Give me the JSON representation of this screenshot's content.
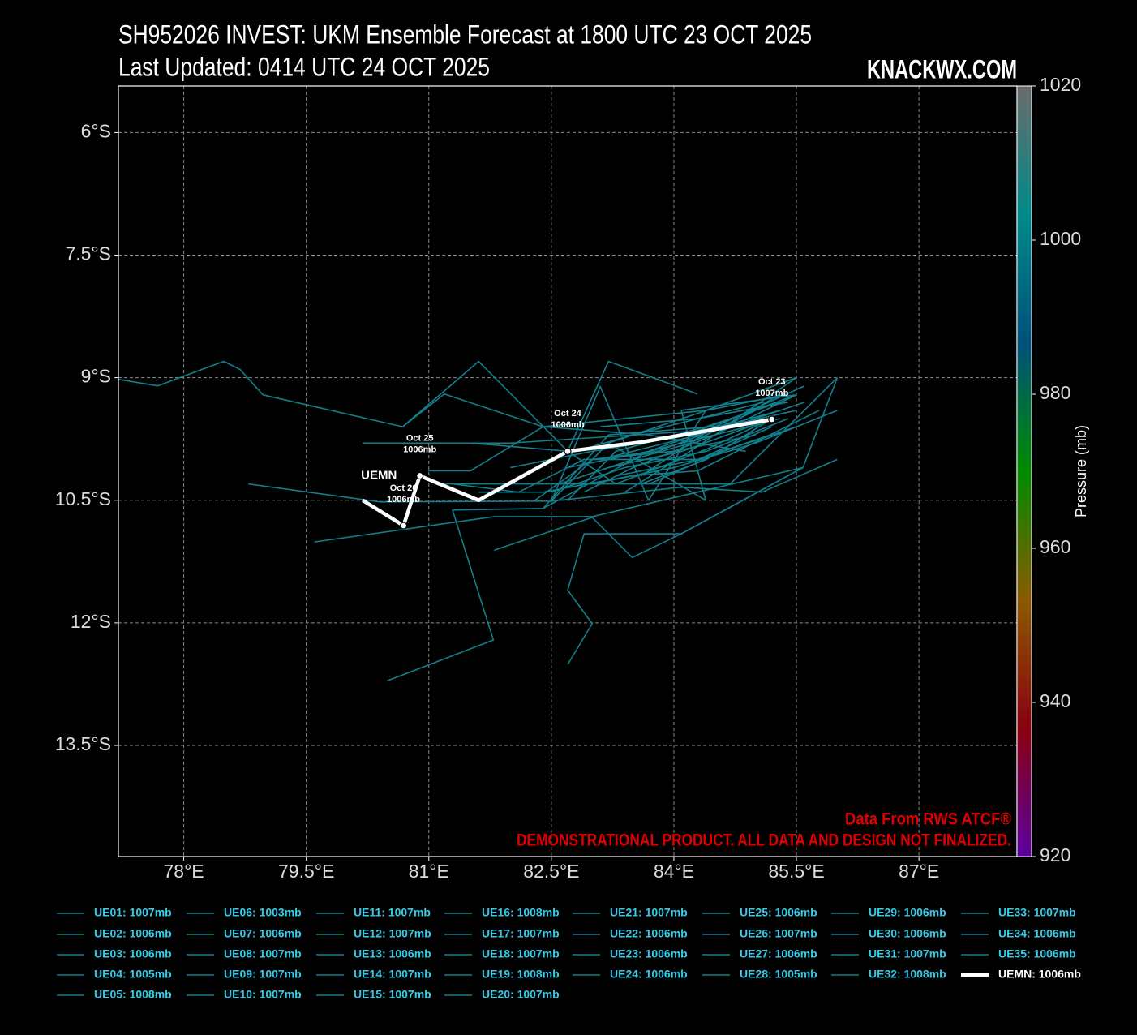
{
  "chart_data": {
    "type": "line",
    "title": "SH952026 INVEST: UKM Ensemble Forecast at 1800 UTC 23 OCT 2025",
    "subtitle": "Last Updated: 0414 UTC 24 OCT 2025",
    "brand": "KNACKWX.COM",
    "source": "Data From RWS ATCF®",
    "disclaimer": "DEMONSTRATIONAL PRODUCT. ALL DATA AND DESIGN NOT FINALIZED.",
    "xlim": [
      77.2,
      88.2
    ],
    "ylim": [
      -14.86,
      -5.43
    ],
    "xticks": [
      {
        "value": 78,
        "label": "78°E"
      },
      {
        "value": 79.5,
        "label": "79.5°E"
      },
      {
        "value": 81,
        "label": "81°E"
      },
      {
        "value": 82.5,
        "label": "82.5°E"
      },
      {
        "value": 84,
        "label": "84°E"
      },
      {
        "value": 85.5,
        "label": "85.5°E"
      },
      {
        "value": 87,
        "label": "87°E"
      }
    ],
    "yticks": [
      {
        "value": -6,
        "label": "6°S"
      },
      {
        "value": -7.5,
        "label": "7.5°S"
      },
      {
        "value": -9,
        "label": "9°S"
      },
      {
        "value": -10.5,
        "label": "10.5°S"
      },
      {
        "value": -12,
        "label": "12°S"
      },
      {
        "value": -13.5,
        "label": "13.5°S"
      }
    ],
    "grid": true,
    "colorbar": {
      "label": "Pressure (mb)",
      "lim": [
        920,
        1020
      ],
      "ticks": [
        920,
        940,
        960,
        980,
        1000,
        1020
      ],
      "colors": [
        "#5a00a0",
        "#8a0010",
        "#8a5a00",
        "#008a00",
        "#00507a",
        "#008a8a",
        "#6a6a6a"
      ]
    },
    "series": [
      {
        "name": "UE01: 1007mb",
        "color": "#127f8c",
        "x": [
          85.5,
          84.39,
          82.4,
          81.19,
          80.68,
          78.97,
          78.69,
          78.49,
          77.68,
          77.2
        ],
        "values": [
          -9.0,
          -9.4,
          -9.6,
          -9.2,
          -9.6,
          -9.21,
          -8.9,
          -8.8,
          -9.1,
          -9.02
        ]
      },
      {
        "name": "UE02: 1006mb",
        "color": "#127f8c",
        "x": [
          85.5,
          84.29,
          82.0,
          80.19
        ],
        "values": [
          -9.21,
          -9.65,
          -9.8,
          -9.8
        ]
      },
      {
        "name": "UE03: 1006mb",
        "color": "#127f8c",
        "x": [
          84.29,
          83.2,
          82.7,
          81.61,
          80.68
        ],
        "values": [
          -9.2,
          -8.8,
          -9.9,
          -8.8,
          -9.6
        ]
      },
      {
        "name": "UE04: 1005mb",
        "color": "#127f8c",
        "x": [
          86.0,
          85.08,
          84.09,
          82.5,
          80.41,
          78.79
        ],
        "values": [
          -10.0,
          -10.4,
          -10.34,
          -10.51,
          -10.52,
          -10.3
        ]
      },
      {
        "name": "UE05: 1008mb",
        "color": "#127f8c",
        "x": [
          86.0,
          85.58,
          83.0,
          81.8,
          79.6
        ],
        "values": [
          -9.0,
          -10.1,
          -10.7,
          -10.7,
          -11.01
        ]
      },
      {
        "name": "UE06: 1003mb",
        "color": "#127f8c",
        "x": [
          85.08,
          83.2,
          82.4,
          81.29,
          81.79,
          80.49
        ],
        "values": [
          -9.55,
          -9.7,
          -10.6,
          -10.62,
          -12.21,
          -12.71
        ]
      },
      {
        "name": "UE07: 1006mb",
        "color": "#127f8c",
        "x": [
          85.58,
          84.09,
          83.49,
          82.9,
          82.7,
          83.0,
          82.7
        ],
        "values": [
          -10.1,
          -10.91,
          -10.91,
          -10.91,
          -11.6,
          -12.01,
          -12.51
        ]
      },
      {
        "name": "UE08: 1007mb",
        "color": "#127f8c",
        "x": [
          85.58,
          84.09,
          83.49,
          83.0,
          81.8
        ],
        "values": [
          -10.1,
          -10.91,
          -11.2,
          -10.71,
          -11.11
        ]
      },
      {
        "name": "UE09: 1007mb",
        "color": "#127f8c",
        "x": [
          85.18,
          84.39,
          83.29,
          82.7,
          81.51
        ],
        "values": [
          -9.51,
          -9.88,
          -10.3,
          -9.9,
          -9.8
        ]
      },
      {
        "name": "UE10: 1007mb",
        "color": "#127f8c",
        "x": [
          84.88,
          83.69,
          82.4,
          81.51,
          80.99
        ],
        "values": [
          -9.9,
          -9.7,
          -9.6,
          -10.14,
          -10.14
        ]
      },
      {
        "name": "UE11: 1007mb",
        "color": "#127f8c",
        "x": [
          85.5,
          84.39,
          83.69,
          83.1,
          82.5
        ],
        "values": [
          -9.0,
          -9.4,
          -10.5,
          -9.11,
          -10.51
        ]
      },
      {
        "name": "UE12: 1007mb",
        "color": "#127f8c",
        "x": [
          86.0,
          84.69,
          82.5,
          81.19
        ],
        "values": [
          -9.0,
          -10.3,
          -10.3,
          -10.3
        ]
      },
      {
        "name": "UE13: 1006mb",
        "color": "#127f8c",
        "x": [
          85.78,
          84.29,
          83.49,
          82.4,
          81.61
        ],
        "values": [
          -9.4,
          -10.14,
          -10.2,
          -10.4,
          -10.4
        ]
      },
      {
        "name": "UE14: 1007mb",
        "color": "#127f8c",
        "x": [
          85.18,
          84.29,
          82.9,
          82.1,
          81.29
        ],
        "values": [
          -9.7,
          -10.0,
          -10.0,
          -10.4,
          -10.3
        ]
      },
      {
        "name": "UE15: 1007mb",
        "color": "#127f8c",
        "x": [
          85.5,
          84.09,
          84.39,
          83.2,
          82.5
        ],
        "values": [
          -9.21,
          -9.4,
          -10.5,
          -9.8,
          -10.51
        ]
      },
      {
        "name": "UE16: 1008mb",
        "color": "#127f8c",
        "x": [
          85.5,
          84.69,
          83.69,
          82.4
        ],
        "values": [
          -9.0,
          -9.55,
          -9.9,
          -10.6
        ]
      },
      {
        "name": "UE17: 1007mb",
        "color": "#127f8c",
        "x": [
          85.3,
          84.39,
          83.29,
          82.7
        ],
        "values": [
          -9.3,
          -9.6,
          -9.9,
          -10.5
        ]
      },
      {
        "name": "UE18: 1007mb",
        "color": "#127f8c",
        "x": [
          85.5,
          84.5,
          83.5,
          82.9
        ],
        "values": [
          -9.21,
          -9.7,
          -10.1,
          -10.4
        ]
      },
      {
        "name": "UE19: 1008mb",
        "color": "#127f8c",
        "x": [
          86.0,
          85.0,
          84.0,
          83.0
        ],
        "values": [
          -9.4,
          -9.8,
          -10.1,
          -10.3
        ]
      },
      {
        "name": "UE20: 1007mb",
        "color": "#127f8c",
        "x": [
          85.3,
          84.2,
          83.0,
          82.0
        ],
        "values": [
          -9.4,
          -9.7,
          -9.9,
          -10.1
        ]
      },
      {
        "name": "UE21: 1007mb",
        "color": "#127f8c",
        "x": [
          85.4,
          84.4,
          83.4,
          82.5
        ],
        "values": [
          -9.5,
          -9.9,
          -10.1,
          -10.4
        ]
      },
      {
        "name": "UE22: 1006mb",
        "color": "#127f8c",
        "x": [
          85.2,
          84.3,
          83.3
        ],
        "values": [
          -9.6,
          -10.0,
          -10.2
        ]
      },
      {
        "name": "UE23: 1006mb",
        "color": "#127f8c",
        "x": [
          85.0,
          84.0,
          83.0,
          82.3
        ],
        "values": [
          -9.7,
          -9.9,
          -10.0,
          -10.5
        ]
      },
      {
        "name": "UE24: 1006mb",
        "color": "#127f8c",
        "x": [
          85.5,
          84.6,
          83.8,
          83.0
        ],
        "values": [
          -9.4,
          -9.6,
          -9.9,
          -10.0
        ]
      },
      {
        "name": "UE25: 1006mb",
        "color": "#127f8c",
        "x": [
          85.4,
          84.3,
          83.1
        ],
        "values": [
          -9.3,
          -9.5,
          -9.6
        ]
      },
      {
        "name": "UE26: 1007mb",
        "color": "#127f8c",
        "x": [
          85.2,
          84.1,
          83.2,
          82.6
        ],
        "values": [
          -9.5,
          -9.9,
          -10.1,
          -10.3
        ]
      },
      {
        "name": "UE27: 1006mb",
        "color": "#127f8c",
        "x": [
          85.6,
          84.5,
          83.6
        ],
        "values": [
          -9.1,
          -9.6,
          -10.2
        ]
      },
      {
        "name": "UE28: 1005mb",
        "color": "#127f8c",
        "x": [
          85.1,
          84.3,
          83.5,
          82.8
        ],
        "values": [
          -9.3,
          -9.5,
          -9.7,
          -9.9
        ]
      },
      {
        "name": "UE29: 1006mb",
        "color": "#127f8c",
        "x": [
          85.3,
          84.8,
          84.2,
          83.4
        ],
        "values": [
          -9.2,
          -9.5,
          -9.9,
          -10.4
        ]
      },
      {
        "name": "UE30: 1006mb",
        "color": "#127f8c",
        "x": [
          85.5,
          84.6,
          83.7
        ],
        "values": [
          -9.6,
          -9.9,
          -10.3
        ]
      },
      {
        "name": "UE31: 1007mb",
        "color": "#127f8c",
        "x": [
          85.0,
          84.2,
          83.5,
          82.9
        ],
        "values": [
          -9.4,
          -9.8,
          -10.0,
          -10.2
        ]
      },
      {
        "name": "UE32: 1008mb",
        "color": "#127f8c",
        "x": [
          85.4,
          84.4,
          83.2
        ],
        "values": [
          -9.2,
          -9.4,
          -9.8
        ]
      },
      {
        "name": "UE33: 1007mb",
        "color": "#127f8c",
        "x": [
          85.3,
          84.5,
          83.7,
          82.7
        ],
        "values": [
          -9.5,
          -9.7,
          -9.9,
          -10.1
        ]
      },
      {
        "name": "UE34: 1006mb",
        "color": "#127f8c",
        "x": [
          85.2,
          84.4,
          83.6
        ],
        "values": [
          -9.5,
          -10.0,
          -10.3
        ]
      },
      {
        "name": "UE35: 1006mb",
        "color": "#127f8c",
        "x": [
          85.6,
          84.7,
          83.9,
          83.1
        ],
        "values": [
          -9.3,
          -9.6,
          -9.8,
          -10.0
        ]
      },
      {
        "name": "UEMN: 1006mb",
        "color": "#ffffff",
        "linewidth": 4.5,
        "track_label": "UEMN",
        "x": [
          85.2,
          83.59,
          82.7,
          81.61,
          80.89,
          80.69,
          80.19
        ],
        "values": [
          -9.51,
          -9.79,
          -9.9,
          -10.5,
          -10.2,
          -10.81,
          -10.5
        ],
        "point_dates": [
          "Oct 23",
          null,
          "Oct 24",
          null,
          "Oct 25",
          "Oct 26",
          null
        ],
        "point_labels": [
          "1007mb",
          null,
          "1006mb",
          null,
          "1006mb",
          "1006mb",
          null
        ]
      }
    ]
  }
}
